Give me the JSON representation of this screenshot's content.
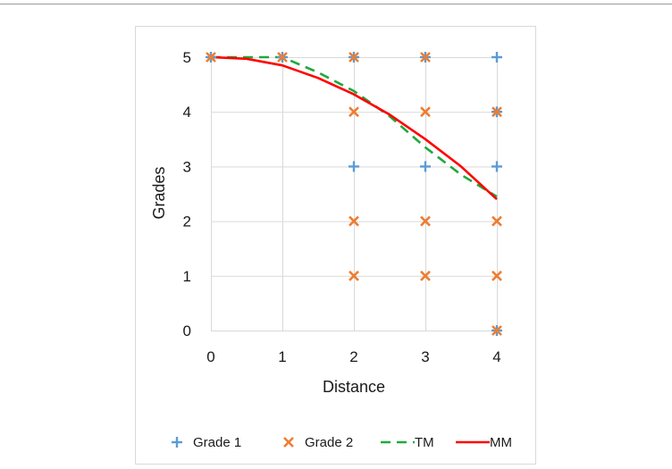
{
  "chart_data": {
    "type": "scatter",
    "xlabel": "Distance",
    "ylabel": "Grades",
    "xlim": [
      0,
      4
    ],
    "ylim": [
      0,
      5
    ],
    "xticks": [
      0,
      1,
      2,
      3,
      4
    ],
    "yticks": [
      0,
      1,
      2,
      3,
      4,
      5
    ],
    "grid": true,
    "legend_position": "bottom",
    "series": [
      {
        "name": "Grade 1",
        "kind": "scatter",
        "marker": "plus",
        "color": "#5b9bd5",
        "points": [
          [
            0,
            5
          ],
          [
            1,
            5
          ],
          [
            2,
            5
          ],
          [
            2,
            3
          ],
          [
            3,
            5
          ],
          [
            3,
            3
          ],
          [
            4,
            5
          ],
          [
            4,
            4
          ],
          [
            4,
            3
          ],
          [
            4,
            0
          ]
        ]
      },
      {
        "name": "Grade 2",
        "kind": "scatter",
        "marker": "x",
        "color": "#ed7d31",
        "points": [
          [
            0,
            5
          ],
          [
            1,
            5
          ],
          [
            2,
            5
          ],
          [
            2,
            4
          ],
          [
            2,
            2
          ],
          [
            2,
            1
          ],
          [
            3,
            5
          ],
          [
            3,
            4
          ],
          [
            3,
            2
          ],
          [
            3,
            1
          ],
          [
            4,
            4
          ],
          [
            4,
            2
          ],
          [
            4,
            1
          ],
          [
            4,
            0
          ]
        ]
      },
      {
        "name": "TM",
        "kind": "line",
        "style": "dashed",
        "color": "#1eaa3c",
        "points": [
          [
            0,
            5
          ],
          [
            0.5,
            5
          ],
          [
            1,
            5
          ],
          [
            1.5,
            4.72
          ],
          [
            2,
            4.38
          ],
          [
            2.5,
            3.92
          ],
          [
            3,
            3.35
          ],
          [
            3.5,
            2.85
          ],
          [
            4,
            2.45
          ]
        ]
      },
      {
        "name": "MM",
        "kind": "line",
        "style": "solid",
        "color": "#ff0000",
        "points": [
          [
            0,
            5
          ],
          [
            0.5,
            4.97
          ],
          [
            1,
            4.85
          ],
          [
            1.5,
            4.62
          ],
          [
            2,
            4.32
          ],
          [
            2.5,
            3.95
          ],
          [
            3,
            3.5
          ],
          [
            3.5,
            3.0
          ],
          [
            4,
            2.4
          ]
        ]
      }
    ]
  }
}
